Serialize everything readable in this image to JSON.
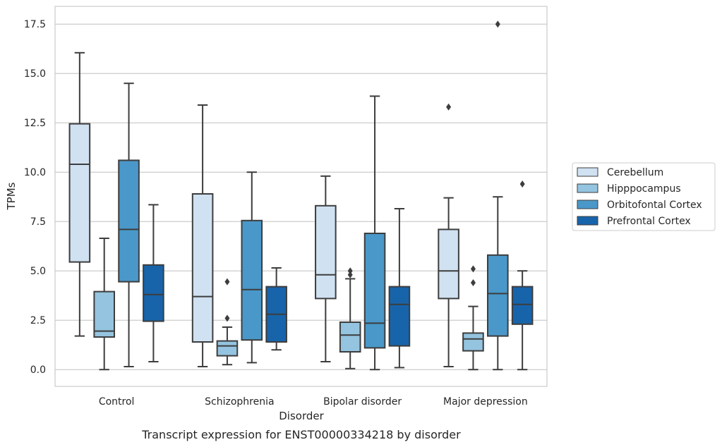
{
  "chart_data": {
    "type": "box",
    "title": "",
    "caption": "Transcript expression for ENST00000334218 by disorder",
    "xlabel": "Disorder",
    "ylabel": "TPMs",
    "ylim": [
      -0.85,
      18.4
    ],
    "yticks": [
      0.0,
      2.5,
      5.0,
      7.5,
      10.0,
      12.5,
      15.0,
      17.5
    ],
    "ytick_labels": [
      "0.0",
      "2.5",
      "5.0",
      "7.5",
      "10.0",
      "12.5",
      "15.0",
      "17.5"
    ],
    "grid": "horizontal",
    "legend_position": "right-center",
    "categories": [
      "Control",
      "Schizophrenia",
      "Bipolar disorder",
      "Major depression"
    ],
    "series": [
      {
        "name": "Cerebellum",
        "color": "#d0e1f2",
        "boxes": [
          {
            "whislo": 1.7,
            "q1": 5.45,
            "med": 10.4,
            "q3": 12.45,
            "whishi": 16.05,
            "fliers": []
          },
          {
            "whislo": 0.15,
            "q1": 1.4,
            "med": 3.7,
            "q3": 8.9,
            "whishi": 13.4,
            "fliers": []
          },
          {
            "whislo": 0.4,
            "q1": 3.6,
            "med": 4.8,
            "q3": 8.3,
            "whishi": 9.8,
            "fliers": []
          },
          {
            "whislo": 0.15,
            "q1": 3.6,
            "med": 5.0,
            "q3": 7.1,
            "whishi": 8.7,
            "fliers": [
              13.3
            ]
          }
        ]
      },
      {
        "name": "Hipppocampus",
        "color": "#94c4df",
        "boxes": [
          {
            "whislo": 0.0,
            "q1": 1.65,
            "med": 1.95,
            "q3": 3.95,
            "whishi": 6.65,
            "fliers": []
          },
          {
            "whislo": 0.25,
            "q1": 0.7,
            "med": 1.2,
            "q3": 1.45,
            "whishi": 2.15,
            "fliers": [
              2.6,
              4.45
            ]
          },
          {
            "whislo": 0.05,
            "q1": 0.9,
            "med": 1.75,
            "q3": 2.4,
            "whishi": 4.6,
            "fliers": [
              4.8,
              5.0
            ]
          },
          {
            "whislo": 0.0,
            "q1": 0.95,
            "med": 1.55,
            "q3": 1.85,
            "whishi": 3.2,
            "fliers": [
              4.4,
              5.1
            ]
          }
        ]
      },
      {
        "name": "Orbitofontal Cortex",
        "color": "#4a98c9",
        "boxes": [
          {
            "whislo": 0.15,
            "q1": 4.45,
            "med": 7.1,
            "q3": 10.6,
            "whishi": 14.5,
            "fliers": []
          },
          {
            "whislo": 0.35,
            "q1": 1.5,
            "med": 4.05,
            "q3": 7.55,
            "whishi": 10.0,
            "fliers": []
          },
          {
            "whislo": 0.0,
            "q1": 1.1,
            "med": 2.35,
            "q3": 6.9,
            "whishi": 13.85,
            "fliers": []
          },
          {
            "whislo": 0.0,
            "q1": 1.7,
            "med": 3.85,
            "q3": 5.8,
            "whishi": 8.75,
            "fliers": [
              17.5
            ]
          }
        ]
      },
      {
        "name": "Prefrontal Cortex",
        "color": "#1764ab",
        "boxes": [
          {
            "whislo": 0.4,
            "q1": 2.45,
            "med": 3.8,
            "q3": 5.3,
            "whishi": 8.35,
            "fliers": []
          },
          {
            "whislo": 1.0,
            "q1": 1.4,
            "med": 2.8,
            "q3": 4.2,
            "whishi": 5.15,
            "fliers": []
          },
          {
            "whislo": 0.1,
            "q1": 1.2,
            "med": 3.3,
            "q3": 4.2,
            "whishi": 8.15,
            "fliers": []
          },
          {
            "whislo": 0.0,
            "q1": 2.3,
            "med": 3.3,
            "q3": 4.2,
            "whishi": 5.0,
            "fliers": [
              9.4
            ]
          }
        ]
      }
    ]
  }
}
